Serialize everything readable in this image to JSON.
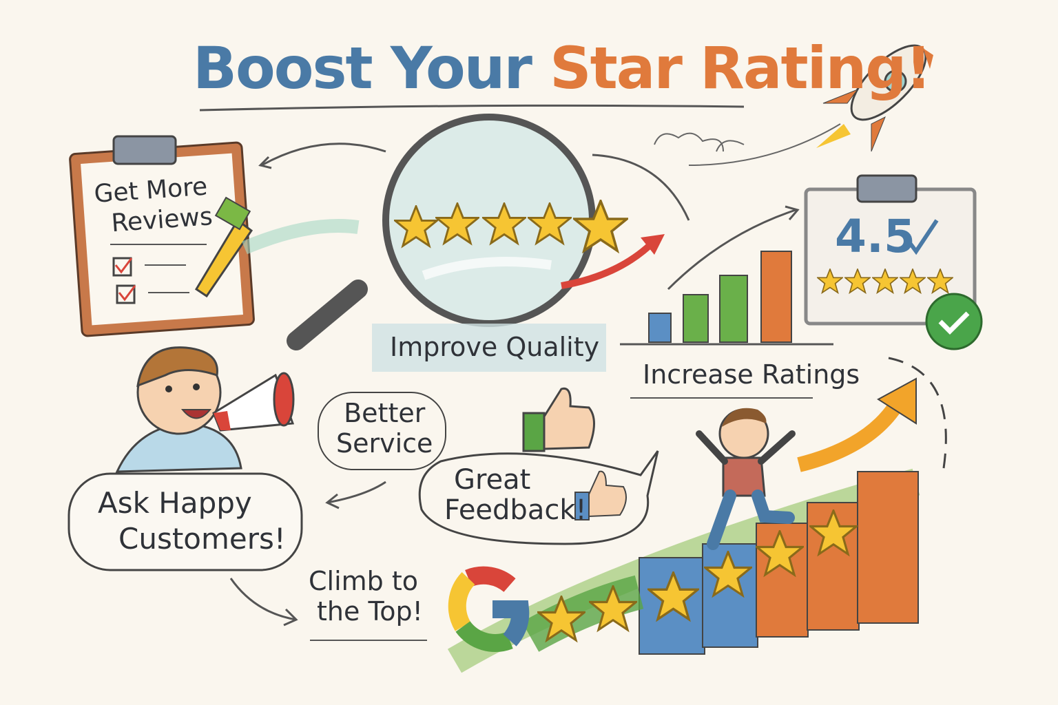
{
  "title": {
    "part1": "Boost Your",
    "part2": "Star Rating!"
  },
  "clipboard_left": {
    "text_line1": "Get More",
    "text_line2": "Reviews"
  },
  "magnifier": {
    "label": "Improve Quality",
    "stars": 5
  },
  "bars": {
    "label": "Increase Ratings"
  },
  "clipboard_right": {
    "rating": "4.5",
    "stars": 5
  },
  "better_service": {
    "line1": "Better",
    "line2": "Service"
  },
  "great_feedback": {
    "line1": "Great",
    "line2": "Feedback!"
  },
  "ask_customers": {
    "line1": "Ask Happy",
    "line2": "Customers!"
  },
  "climb": {
    "line1": "Climb to",
    "line2": "the Top!"
  },
  "colors": {
    "blue": "#4a7aa6",
    "orange": "#e07a3c",
    "green": "#5aa545",
    "star": "#f6c533",
    "red": "#d9453a"
  }
}
